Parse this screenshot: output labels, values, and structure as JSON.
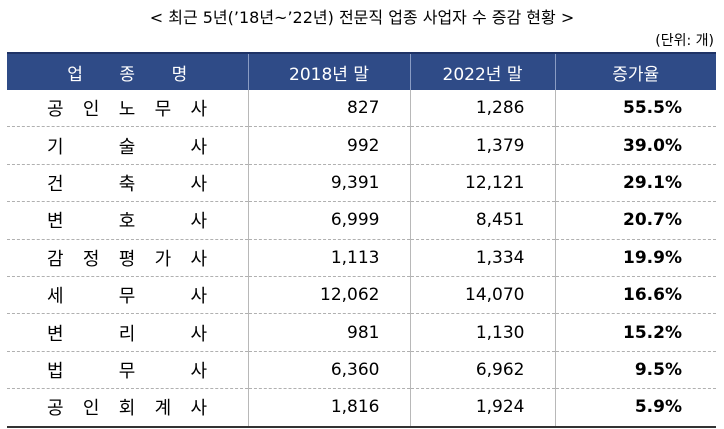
{
  "title": "< 최근 5년(’18년~’22년) 전문직 업종 사업자 수 증감 현황 >",
  "unit": "(단위: 개)",
  "table": {
    "headers": [
      "업 종 명",
      "2018년 말",
      "2022년 말",
      "증가율"
    ],
    "rows": [
      [
        "공 인 노 무 사",
        "827",
        "1,286",
        "55.5%"
      ],
      [
        "기 술 사",
        "992",
        "1,379",
        "39.0%"
      ],
      [
        "건 축 사",
        "9,391",
        "12,121",
        "29.1%"
      ],
      [
        "변 호 사",
        "6,999",
        "8,451",
        "20.7%"
      ],
      [
        "감 정 평 가 사",
        "1,113",
        "1,334",
        "19.9%"
      ],
      [
        "세 무 사",
        "12,062",
        "14,070",
        "16.6%"
      ],
      [
        "변 리 사",
        "981",
        "1,130",
        "15.2%"
      ],
      [
        "법 무 사",
        "6,360",
        "6,962",
        "9.5%"
      ],
      [
        "공 인 회 계 사",
        "1,816",
        "1,924",
        "5.9%"
      ]
    ]
  }
}
